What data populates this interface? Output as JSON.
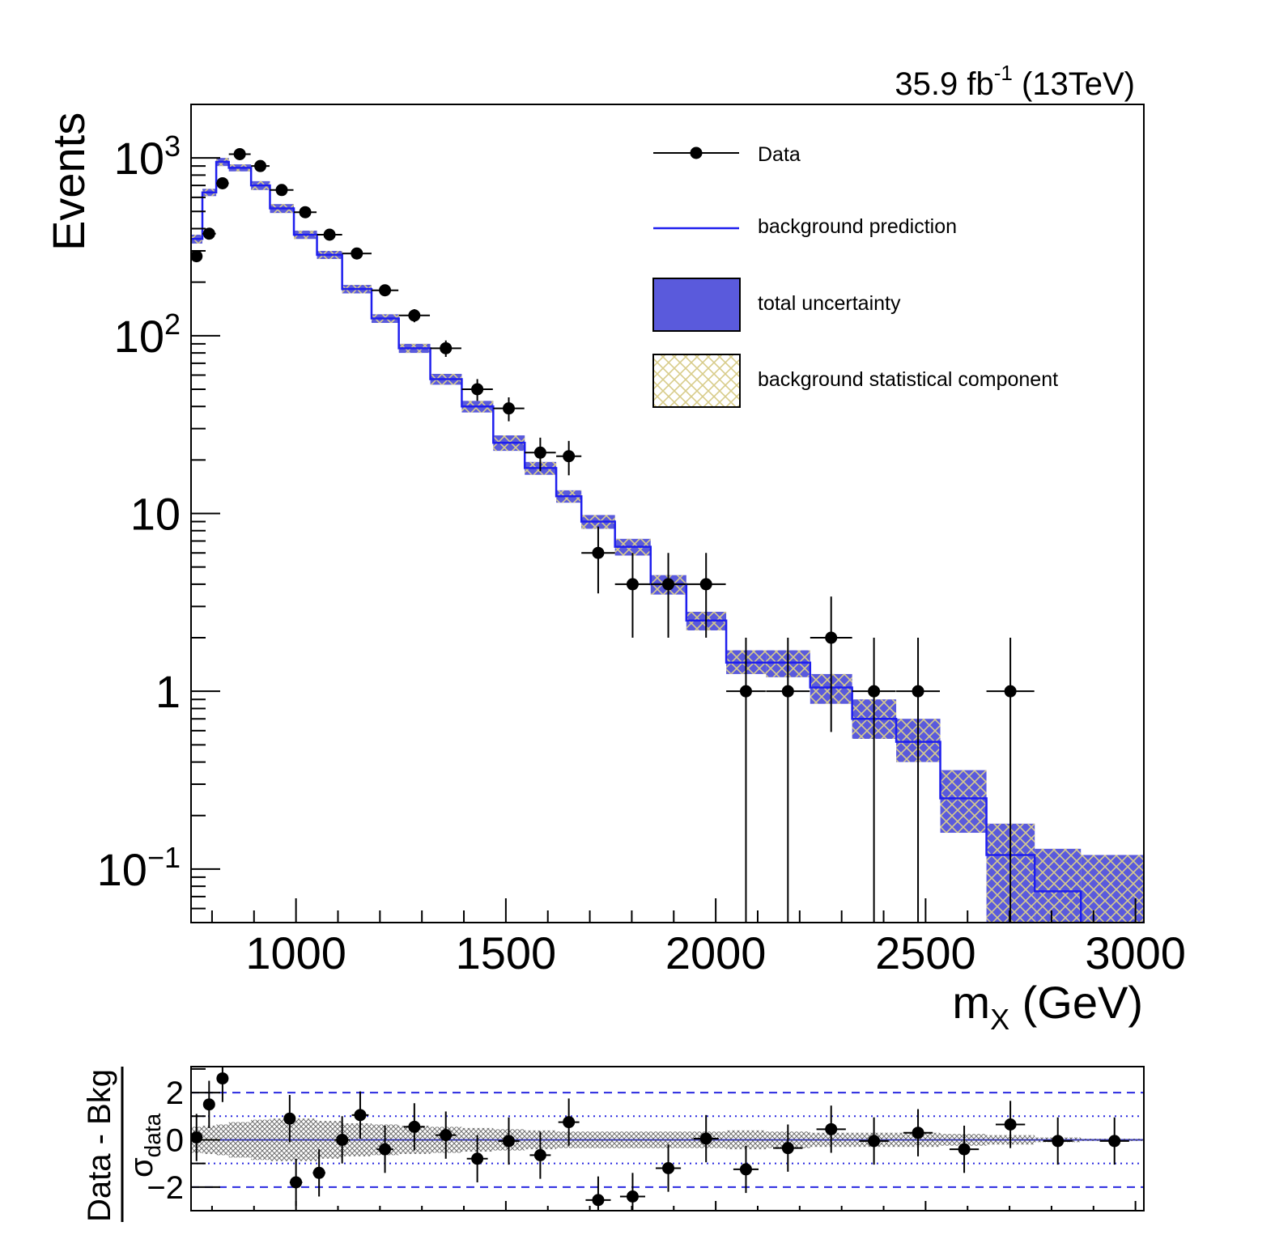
{
  "chart_data": [
    {
      "type": "histogram",
      "name": "main",
      "lumi_label": {
        "value": "35.9 fb",
        "exponent": "-1",
        "suffix": " (13TeV)"
      },
      "ylabel": "Events",
      "xlabel": {
        "base": "m",
        "sub": "X",
        "unit": " (GeV)"
      },
      "yscale": "log",
      "xlim": [
        750,
        3020
      ],
      "ylim": [
        0.05,
        2000
      ],
      "xticks": [
        1000,
        1500,
        2000,
        2500,
        3000
      ],
      "xtick_labels": [
        "1000",
        "1500",
        "2000",
        "2500",
        "3000"
      ],
      "yticks": [
        {
          "value": 1000,
          "base": "10",
          "exp": "3"
        },
        {
          "value": 100,
          "base": "10",
          "exp": "2"
        },
        {
          "value": 10,
          "base": "10",
          "exp": ""
        },
        {
          "value": 1,
          "base": "1",
          "exp": ""
        },
        {
          "value": 0.1,
          "base": "10",
          "exp": "−1"
        }
      ],
      "legend": [
        {
          "key": "data",
          "label": "Data"
        },
        {
          "key": "bkg",
          "label": "background prediction"
        },
        {
          "key": "unc",
          "label": "total uncertainty"
        },
        {
          "key": "stat",
          "label": "background statistical component"
        }
      ],
      "colors": {
        "uncertainty": "#5a5adc",
        "hatch": "#d8cc8a",
        "prediction": "#1e1eee",
        "data": "#000000"
      },
      "bin_edges": [
        750,
        777,
        810,
        840,
        893,
        938,
        995,
        1050,
        1110,
        1180,
        1245,
        1320,
        1395,
        1470,
        1545,
        1620,
        1680,
        1760,
        1845,
        1930,
        2025,
        2120,
        2225,
        2325,
        2430,
        2535,
        2645,
        2760,
        2870,
        3020
      ],
      "background": [
        350,
        640,
        950,
        880,
        700,
        520,
        370,
        285,
        183,
        125,
        85,
        57,
        40,
        25,
        18,
        12.5,
        9,
        6.5,
        4,
        2.5,
        1.45,
        1.45,
        1.05,
        0.7,
        0.52,
        0.25,
        0.12,
        0.075,
        0.045
      ],
      "uncertainty_band": [
        [
          330,
          370
        ],
        [
          610,
          670
        ],
        [
          900,
          1000
        ],
        [
          840,
          920
        ],
        [
          660,
          740
        ],
        [
          490,
          550
        ],
        [
          350,
          390
        ],
        [
          270,
          300
        ],
        [
          173,
          193
        ],
        [
          118,
          132
        ],
        [
          80,
          90
        ],
        [
          53,
          61
        ],
        [
          37,
          43
        ],
        [
          22.5,
          27.5
        ],
        [
          16.5,
          19.5
        ],
        [
          11.5,
          13.5
        ],
        [
          8.2,
          9.8
        ],
        [
          5.8,
          7.2
        ],
        [
          3.5,
          4.5
        ],
        [
          2.2,
          2.8
        ],
        [
          1.25,
          1.7
        ],
        [
          1.2,
          1.7
        ],
        [
          0.85,
          1.25
        ],
        [
          0.54,
          0.9
        ],
        [
          0.4,
          0.7
        ],
        [
          0.16,
          0.36
        ],
        [
          0.05,
          0.18
        ],
        [
          0.03,
          0.13
        ],
        [
          0.03,
          0.12
        ]
      ],
      "data": [
        {
          "x": 763,
          "y": 280,
          "yerr": [
            17,
            17
          ],
          "xerr": 13
        },
        {
          "x": 793,
          "y": 375,
          "yerr": [
            19,
            19
          ],
          "xerr": 16
        },
        {
          "x": 825,
          "y": 720,
          "yerr": [
            27,
            27
          ],
          "xerr": 15
        },
        {
          "x": 866,
          "y": 1050,
          "yerr": [
            32,
            32
          ],
          "xerr": 26
        },
        {
          "x": 915,
          "y": 900,
          "yerr": [
            30,
            30
          ],
          "xerr": 22
        },
        {
          "x": 966,
          "y": 660,
          "yerr": [
            26,
            26
          ],
          "xerr": 28
        },
        {
          "x": 1022,
          "y": 495,
          "yerr": [
            22,
            22
          ],
          "xerr": 27
        },
        {
          "x": 1080,
          "y": 370,
          "yerr": [
            19,
            19
          ],
          "xerr": 30
        },
        {
          "x": 1145,
          "y": 290,
          "yerr": [
            17,
            17
          ],
          "xerr": 35
        },
        {
          "x": 1212,
          "y": 180,
          "yerr": [
            13,
            13
          ],
          "xerr": 32
        },
        {
          "x": 1282,
          "y": 130,
          "yerr": [
            11,
            11
          ],
          "xerr": 37
        },
        {
          "x": 1357,
          "y": 85,
          "yerr": [
            9,
            9
          ],
          "xerr": 37
        },
        {
          "x": 1432,
          "y": 50,
          "yerr": [
            7,
            7
          ],
          "xerr": 37
        },
        {
          "x": 1507,
          "y": 39,
          "yerr": [
            6,
            6
          ],
          "xerr": 37
        },
        {
          "x": 1582,
          "y": 22,
          "yerr": [
            4.7,
            4.7
          ],
          "xerr": 37
        },
        {
          "x": 1650,
          "y": 21,
          "yerr": [
            4.6,
            4.6
          ],
          "xerr": 30
        },
        {
          "x": 1720,
          "y": 6,
          "yerr": [
            2.45,
            2.45
          ],
          "xerr": 40
        },
        {
          "x": 1802,
          "y": 4,
          "yerr": [
            2,
            2
          ],
          "xerr": 42
        },
        {
          "x": 1887,
          "y": 4,
          "yerr": [
            2,
            2
          ],
          "xerr": 42
        },
        {
          "x": 1977,
          "y": 4,
          "yerr": [
            2,
            2
          ],
          "xerr": 47
        },
        {
          "x": 2072,
          "y": 1,
          "yerr": [
            1,
            1
          ],
          "xerr": 47
        },
        {
          "x": 2172,
          "y": 1,
          "yerr": [
            1,
            1
          ],
          "xerr": 52
        },
        {
          "x": 2275,
          "y": 2,
          "yerr": [
            1.41,
            1.41
          ],
          "xerr": 50
        },
        {
          "x": 2377,
          "y": 1,
          "yerr": [
            1,
            1
          ],
          "xerr": 52
        },
        {
          "x": 2482,
          "y": 1,
          "yerr": [
            1,
            1
          ],
          "xerr": 52
        },
        {
          "x": 2702,
          "y": 1,
          "yerr": [
            1,
            1
          ],
          "xerr": 57
        }
      ]
    },
    {
      "type": "scatter",
      "name": "pull",
      "ylabel_top": "Data - Bkg",
      "ylabel_bottom": {
        "base": "σ",
        "sub": "data"
      },
      "ylim": [
        -3,
        3.1
      ],
      "yticks": [
        2,
        0,
        -2
      ],
      "ytick_labels": [
        "2",
        "0",
        "−2"
      ],
      "ref_lines": {
        "dashed": [
          2,
          -2
        ],
        "dotted": [
          1,
          -1
        ]
      },
      "band": [
        0.55,
        0.6,
        0.65,
        0.75,
        0.85,
        0.9,
        0.9,
        0.8,
        0.7,
        0.65,
        0.6,
        0.55,
        0.5,
        0.45,
        0.4,
        0.35,
        0.35,
        0.35,
        0.35,
        0.35,
        0.4,
        0.35,
        0.3,
        0.3,
        0.3,
        0.25,
        0.2,
        0.1,
        0.05
      ],
      "points": [
        {
          "x": 763,
          "y": 0.1,
          "yerr": 1,
          "xerr": 8
        },
        {
          "x": 793,
          "y": 1.5,
          "yerr": 1,
          "xerr": 12
        },
        {
          "x": 825,
          "y": 2.6,
          "yerr": 1,
          "xerr": 8
        },
        {
          "x": 985,
          "y": 0.9,
          "yerr": 1,
          "xerr": 12
        },
        {
          "x": 1000,
          "y": -1.8,
          "yerr": 1,
          "xerr": 15
        },
        {
          "x": 1055,
          "y": -1.4,
          "yerr": 1,
          "xerr": 15
        },
        {
          "x": 1110,
          "y": 0,
          "yerr": 1,
          "xerr": 18
        },
        {
          "x": 1153,
          "y": 1.05,
          "yerr": 1,
          "xerr": 20
        },
        {
          "x": 1212,
          "y": -0.4,
          "yerr": 1,
          "xerr": 20
        },
        {
          "x": 1282,
          "y": 0.55,
          "yerr": 1,
          "xerr": 25
        },
        {
          "x": 1357,
          "y": 0.2,
          "yerr": 1,
          "xerr": 25
        },
        {
          "x": 1432,
          "y": -0.8,
          "yerr": 1,
          "xerr": 25
        },
        {
          "x": 1507,
          "y": -0.05,
          "yerr": 1,
          "xerr": 25
        },
        {
          "x": 1582,
          "y": -0.65,
          "yerr": 1,
          "xerr": 25
        },
        {
          "x": 1650,
          "y": 0.75,
          "yerr": 1,
          "xerr": 25
        },
        {
          "x": 1720,
          "y": -2.55,
          "yerr": 1,
          "xerr": 30
        },
        {
          "x": 1802,
          "y": -2.4,
          "yerr": 1,
          "xerr": 30
        },
        {
          "x": 1887,
          "y": -1.2,
          "yerr": 1,
          "xerr": 30
        },
        {
          "x": 1977,
          "y": 0.05,
          "yerr": 1,
          "xerr": 30
        },
        {
          "x": 2072,
          "y": -1.25,
          "yerr": 1,
          "xerr": 30
        },
        {
          "x": 2172,
          "y": -0.35,
          "yerr": 1,
          "xerr": 35
        },
        {
          "x": 2275,
          "y": 0.45,
          "yerr": 1,
          "xerr": 35
        },
        {
          "x": 2377,
          "y": -0.05,
          "yerr": 1,
          "xerr": 35
        },
        {
          "x": 2482,
          "y": 0.3,
          "yerr": 1,
          "xerr": 35
        },
        {
          "x": 2592,
          "y": -0.4,
          "yerr": 1,
          "xerr": 35
        },
        {
          "x": 2702,
          "y": 0.65,
          "yerr": 1,
          "xerr": 35
        },
        {
          "x": 2815,
          "y": -0.05,
          "yerr": 1,
          "xerr": 35
        },
        {
          "x": 2950,
          "y": -0.05,
          "yerr": 1,
          "xerr": 35
        }
      ]
    }
  ]
}
